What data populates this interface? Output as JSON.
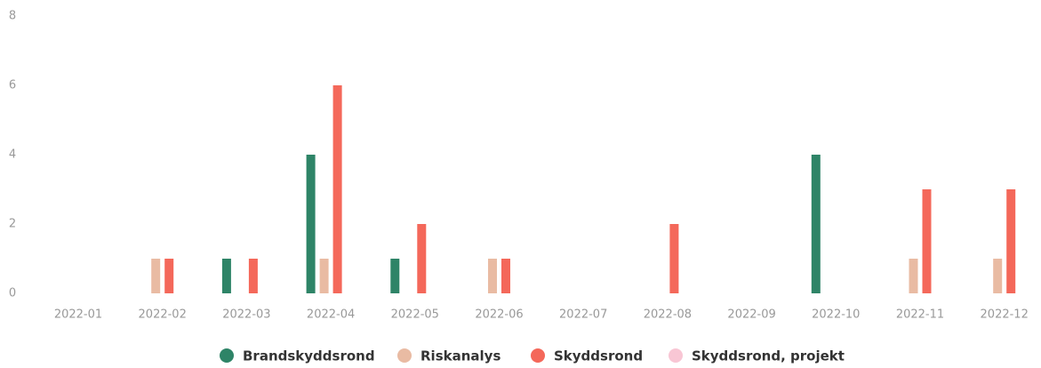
{
  "chart_data": {
    "type": "bar",
    "categories": [
      "2022-01",
      "2022-02",
      "2022-03",
      "2022-04",
      "2022-05",
      "2022-06",
      "2022-07",
      "2022-08",
      "2022-09",
      "2022-10",
      "2022-11",
      "2022-12"
    ],
    "series": [
      {
        "name": "Brandskyddsrond",
        "color": "#2e8467",
        "values": [
          0,
          0,
          1,
          4,
          1,
          0,
          0,
          0,
          0,
          4,
          0,
          0
        ]
      },
      {
        "name": "Riskanalys",
        "color": "#e9bba3",
        "values": [
          0,
          1,
          0,
          1,
          0,
          1,
          0,
          0,
          0,
          0,
          1,
          1
        ]
      },
      {
        "name": "Skyddsrond",
        "color": "#f4685a",
        "values": [
          0,
          1,
          1,
          6,
          2,
          1,
          0,
          2,
          0,
          0,
          3,
          3
        ]
      },
      {
        "name": "Skyddsrond, projekt",
        "color": "#f8c6d4",
        "values": [
          0,
          0,
          0,
          0,
          0,
          0,
          0,
          0,
          0,
          0,
          0,
          0
        ]
      }
    ],
    "ylim": [
      0,
      8
    ],
    "yticks": [
      0,
      2,
      4,
      6,
      8
    ],
    "grid": false
  }
}
